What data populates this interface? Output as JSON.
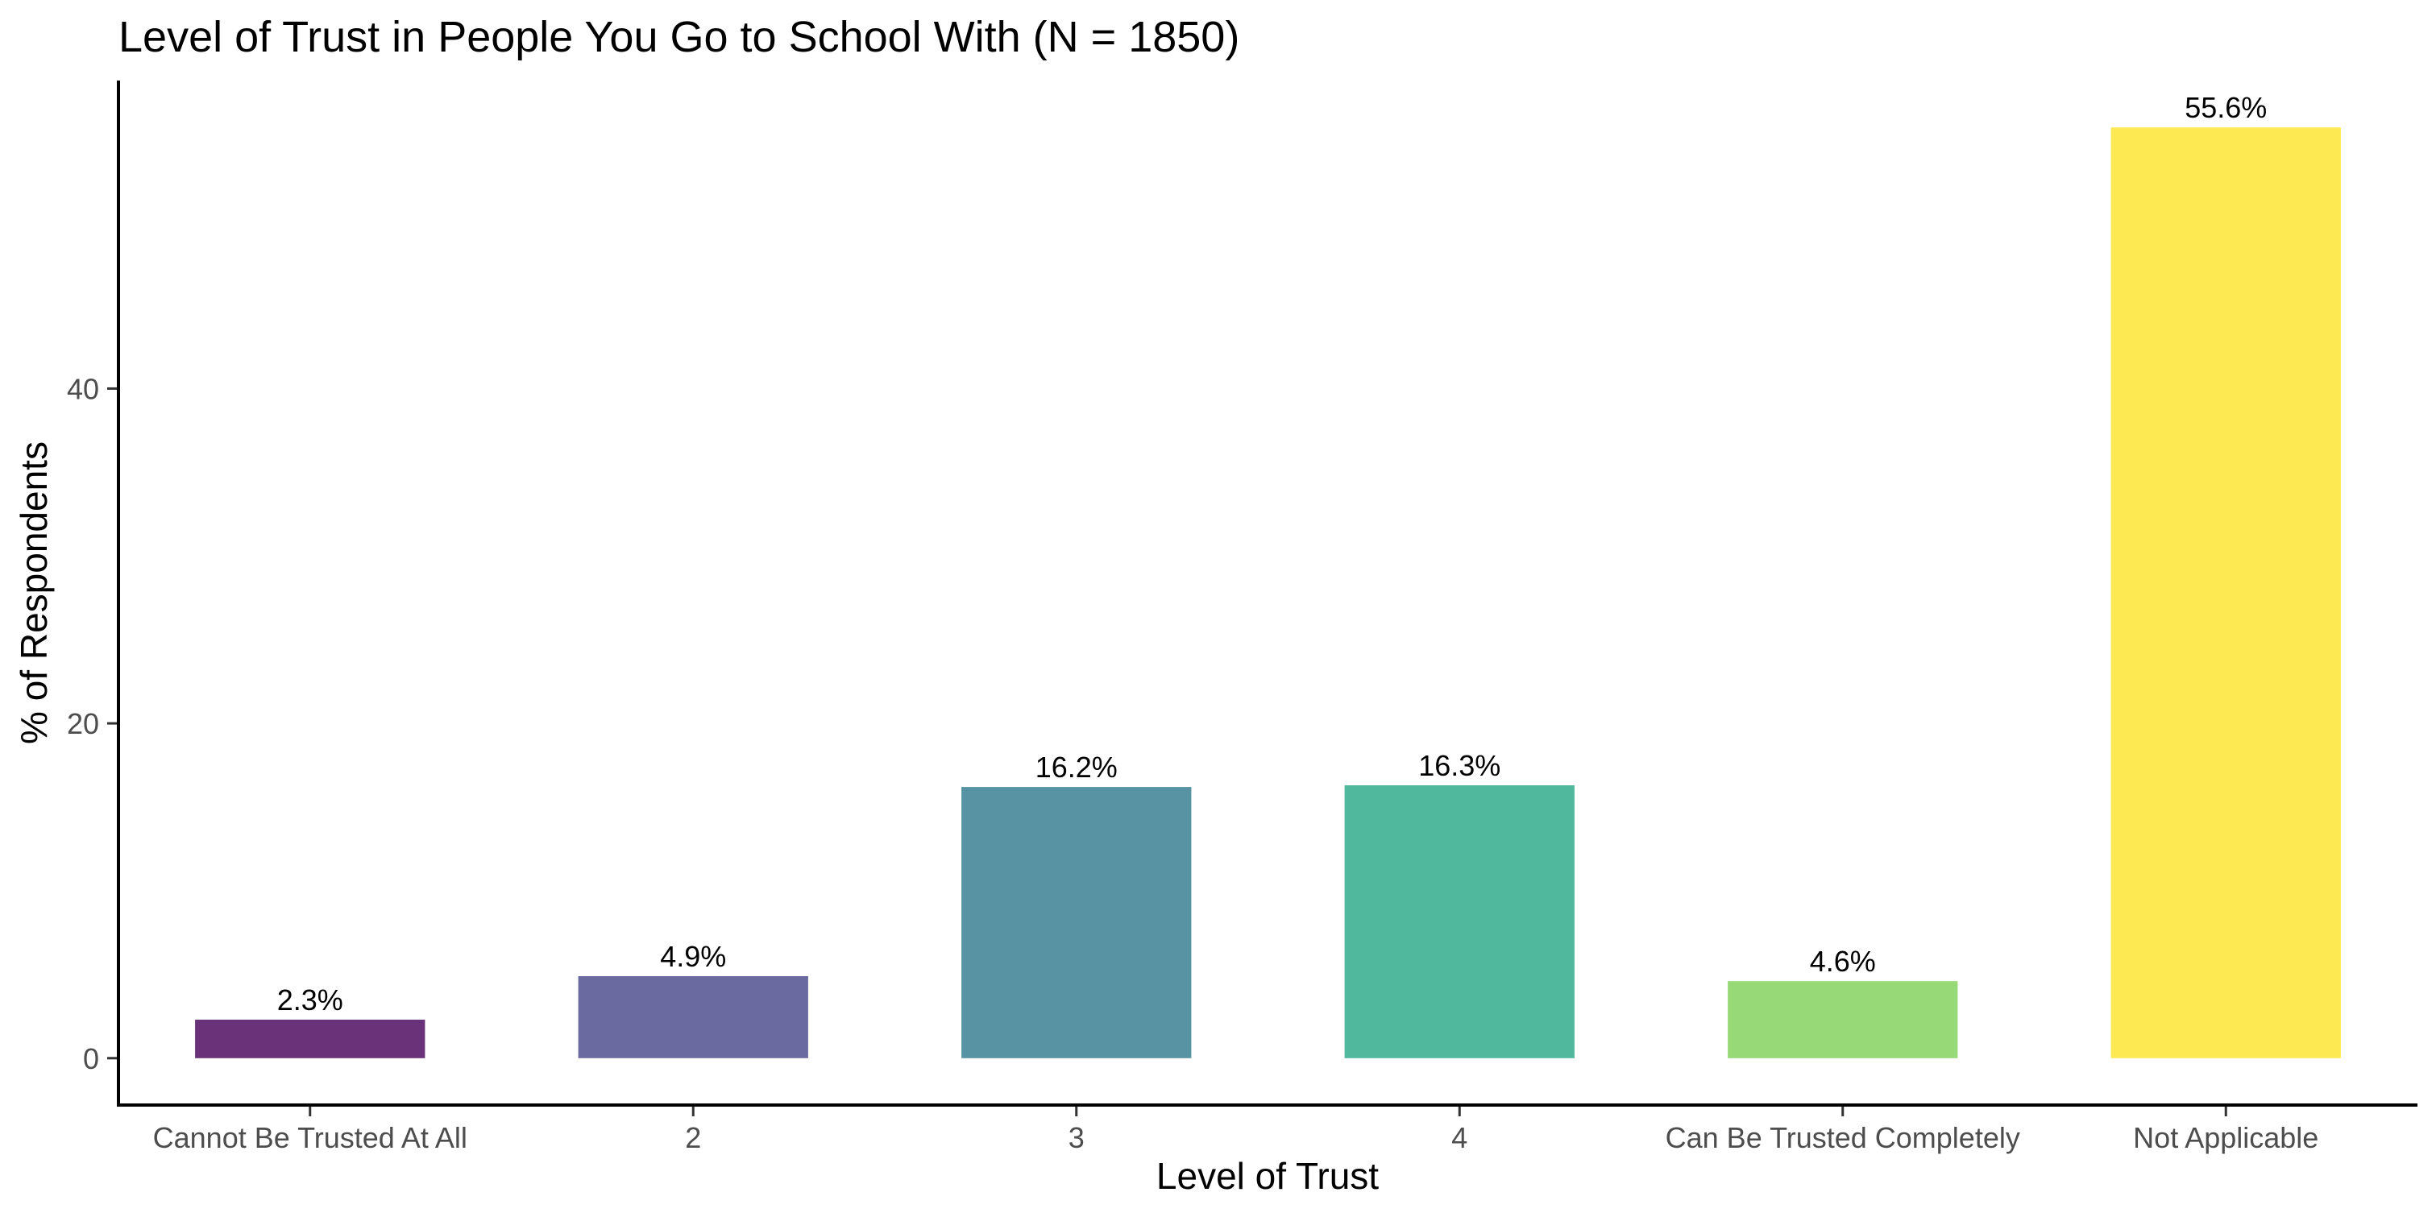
{
  "chart_data": {
    "type": "bar",
    "title": "Level of Trust in People You Go to School With (N = 1850)",
    "xlabel": "Level of Trust",
    "ylabel": "% of Respondents",
    "categories": [
      "Cannot Be Trusted At All",
      "2",
      "3",
      "4",
      "Can Be Trusted Completely",
      "Not Applicable"
    ],
    "values": [
      2.3,
      4.9,
      16.2,
      16.3,
      4.6,
      55.6
    ],
    "value_labels": [
      "2.3%",
      "4.9%",
      "16.2%",
      "16.3%",
      "4.6%",
      "55.6%"
    ],
    "colors": [
      "#6a3278",
      "#6a6aa0",
      "#5893a4",
      "#4fb89d",
      "#98d977",
      "#fdea52"
    ],
    "yticks": [
      0,
      20,
      40
    ],
    "ylim": [
      -2.8,
      58.4
    ],
    "grid": false,
    "legend": "none"
  }
}
